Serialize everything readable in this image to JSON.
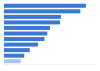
{
  "chart_data": {
    "type": "bar",
    "orientation": "horizontal",
    "categories": [
      null,
      null,
      null,
      null,
      null,
      null,
      null,
      null,
      null,
      null,
      null
    ],
    "values": [
      89,
      83,
      62,
      61,
      50,
      47,
      44,
      37,
      28,
      22,
      18
    ],
    "colors": [
      "#3b78d4",
      "#3b78d4",
      "#3b78d4",
      "#3b78d4",
      "#3b78d4",
      "#3b78d4",
      "#3b78d4",
      "#3b78d4",
      "#3b78d4",
      "#3b78d4",
      "#a9c3ea"
    ],
    "xlim": [
      0,
      100
    ],
    "grid": false,
    "tick_labels": false
  }
}
